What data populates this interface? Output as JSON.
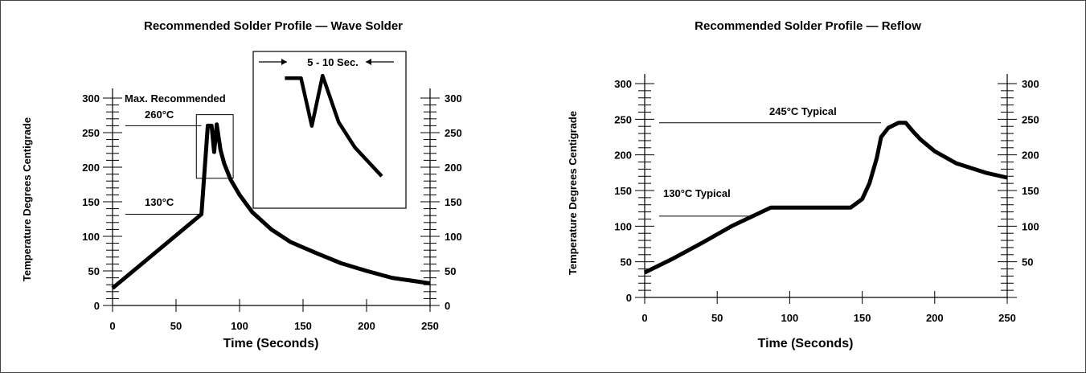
{
  "chart_data": [
    {
      "type": "line",
      "title": "Recommended Solder Profile — Wave Solder",
      "xlabel": "Time (Seconds)",
      "ylabel": "Temperature Degrees Centigrade",
      "xlim": [
        0,
        250
      ],
      "ylim": [
        0,
        300
      ],
      "x_ticks": [
        "0",
        "50",
        "100",
        "150",
        "200",
        "250"
      ],
      "y_ticks": [
        "0",
        "50",
        "100",
        "150",
        "200",
        "250",
        "300"
      ],
      "y_ticks_right": [
        "0",
        "50",
        "100",
        "150",
        "200",
        "250",
        "300"
      ],
      "grid": false,
      "series": [
        {
          "x": [
            0,
            70,
            75,
            78,
            80,
            82,
            85,
            88,
            93,
            100,
            110,
            125,
            140,
            160,
            180,
            200,
            220,
            250
          ],
          "y": [
            25,
            132,
            260,
            260,
            222,
            262,
            225,
            205,
            182,
            160,
            135,
            110,
            92,
            76,
            61,
            50,
            40,
            32
          ]
        }
      ],
      "annotations": {
        "max_label": "Max. Recommended",
        "max_temp": "260°C",
        "preheat_temp": "130°C",
        "inset_label": "5 - 10 Sec."
      }
    },
    {
      "type": "line",
      "title": "Recommended Solder Profile — Reflow",
      "xlabel": "Time (Seconds)",
      "ylabel": "Temperature Degrees Centigrade",
      "xlim": [
        0,
        250
      ],
      "ylim": [
        0,
        300
      ],
      "x_ticks": [
        "0",
        "50",
        "100",
        "150",
        "200",
        "250"
      ],
      "y_ticks": [
        "0",
        "50",
        "100",
        "150",
        "200",
        "250",
        "300"
      ],
      "y_ticks_right": [
        "50",
        "100",
        "150",
        "200",
        "250",
        "300"
      ],
      "grid": false,
      "series": [
        {
          "x": [
            0,
            20,
            40,
            60,
            87,
            120,
            142,
            150,
            155,
            160,
            163,
            168,
            175,
            180,
            185,
            190,
            200,
            215,
            235,
            250
          ],
          "y": [
            35,
            55,
            77,
            100,
            126,
            126,
            126,
            138,
            160,
            195,
            225,
            238,
            245,
            245,
            233,
            222,
            205,
            188,
            175,
            168
          ]
        }
      ],
      "annotations": {
        "peak_label": "245°C Typical",
        "soak_label": "130°C Typical"
      }
    }
  ]
}
